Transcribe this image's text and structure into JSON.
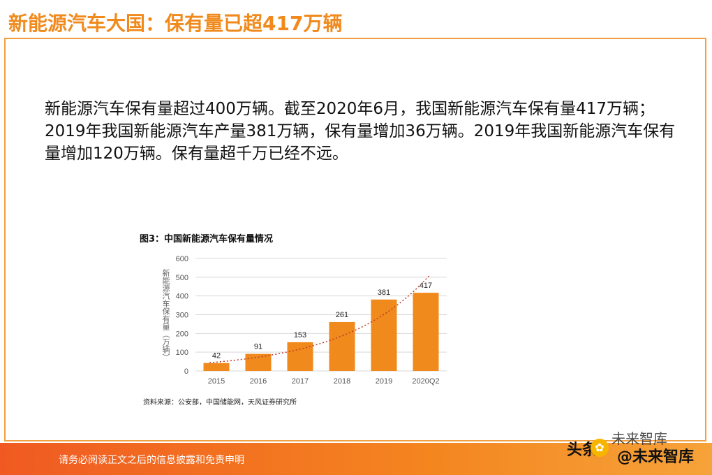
{
  "slide": {
    "title": "新能源汽车大国：保有量已超417万辆",
    "paragraph": "新能源汽车保有量超过400万辆。截至2020年6月，我国新能源汽车保有量417万辆；2019年我国新能源汽车产量381万辆，保有量增加36万辆。2019年我国新能源汽车保有量增加120万辆。保有量超千万已经不远。",
    "figure_title": "图3：中国新能源汽车保有量情况",
    "source": "资料来源：公安部，中国储能网，天风证券研究所",
    "footer": "请务必阅读正文之后的信息披露和免责申明",
    "watermark": {
      "left": "头条",
      "top": "未来智库",
      "bottom": "@未来智库"
    }
  },
  "chart_data": {
    "type": "bar",
    "title": "图3：中国新能源汽车保有量情况",
    "categories": [
      "2015",
      "2016",
      "2017",
      "2018",
      "2019",
      "2020Q2"
    ],
    "values": [
      42,
      91,
      153,
      261,
      381,
      417
    ],
    "ylabel": "新能源汽车保有量（万辆）",
    "xlabel": "",
    "ylim": [
      0,
      600
    ],
    "yticks": [
      0,
      100,
      200,
      300,
      400,
      500,
      600
    ],
    "trendline": "dotted exponential",
    "colors": {
      "bar": "#f08a1c",
      "trend": "#c0392b",
      "grid": "#d9d9d9"
    }
  }
}
